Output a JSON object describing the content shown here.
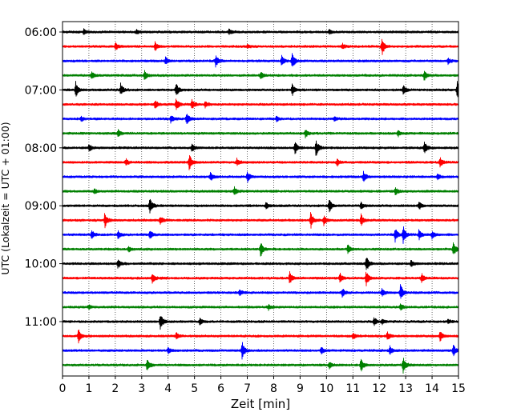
{
  "chart_data": {
    "type": "line",
    "subtype": "seismic-helicorder",
    "xlabel": "Zeit  [min]",
    "ylabel": "UTC (Lokalzeit = UTC + 01:00)",
    "xlim": [
      0,
      15
    ],
    "xticks": [
      0,
      1,
      2,
      3,
      4,
      5,
      6,
      7,
      8,
      9,
      10,
      11,
      12,
      13,
      14,
      15
    ],
    "grid": "vertical-dotted",
    "row_interval_min": 15,
    "yticks": [
      {
        "row": 0,
        "label": "06:00"
      },
      {
        "row": 4,
        "label": "07:00"
      },
      {
        "row": 8,
        "label": "08:00"
      },
      {
        "row": 12,
        "label": "09:00"
      },
      {
        "row": 16,
        "label": "10:00"
      },
      {
        "row": 20,
        "label": "11:00"
      }
    ],
    "colors": [
      "#000000",
      "#ff0000",
      "#0000ff",
      "#008000"
    ],
    "rows": [
      {
        "start": "06:00",
        "color": "#000000",
        "events": [
          [
            0.8,
            0.35
          ],
          [
            2.8,
            0.3
          ],
          [
            6.3,
            0.3
          ],
          [
            10.1,
            0.3
          ]
        ]
      },
      {
        "start": "06:15",
        "color": "#ff0000",
        "events": [
          [
            2.0,
            0.45
          ],
          [
            3.5,
            0.5
          ],
          [
            7.0,
            0.3
          ],
          [
            10.6,
            0.35
          ],
          [
            12.1,
            1.0
          ]
        ]
      },
      {
        "start": "06:30",
        "color": "#0000ff",
        "events": [
          [
            3.9,
            0.4
          ],
          [
            5.8,
            0.7
          ],
          [
            8.3,
            0.6
          ],
          [
            8.7,
            1.0
          ],
          [
            14.6,
            0.35
          ]
        ]
      },
      {
        "start": "06:45",
        "color": "#008000",
        "events": [
          [
            1.1,
            0.5
          ],
          [
            3.1,
            0.55
          ],
          [
            7.5,
            0.4
          ],
          [
            13.7,
            0.6
          ]
        ]
      },
      {
        "start": "07:00",
        "color": "#000000",
        "events": [
          [
            0.5,
            1.0
          ],
          [
            2.2,
            0.7
          ],
          [
            4.3,
            0.8
          ],
          [
            8.7,
            0.7
          ],
          [
            12.9,
            0.6
          ],
          [
            14.95,
            1.0
          ]
        ]
      },
      {
        "start": "07:15",
        "color": "#ff0000",
        "events": [
          [
            3.5,
            0.5
          ],
          [
            4.3,
            0.8
          ],
          [
            4.9,
            0.6
          ],
          [
            5.4,
            0.4
          ]
        ]
      },
      {
        "start": "07:30",
        "color": "#0000ff",
        "events": [
          [
            0.7,
            0.3
          ],
          [
            4.1,
            0.5
          ],
          [
            4.7,
            0.8
          ],
          [
            8.1,
            0.3
          ],
          [
            10.3,
            0.3
          ]
        ]
      },
      {
        "start": "07:45",
        "color": "#008000",
        "events": [
          [
            2.1,
            0.4
          ],
          [
            9.2,
            0.5
          ],
          [
            12.7,
            0.4
          ]
        ]
      },
      {
        "start": "08:00",
        "color": "#000000",
        "events": [
          [
            1.0,
            0.45
          ],
          [
            4.9,
            0.5
          ],
          [
            8.8,
            0.8
          ],
          [
            9.6,
            1.0
          ],
          [
            13.7,
            0.8
          ]
        ]
      },
      {
        "start": "08:15",
        "color": "#ff0000",
        "events": [
          [
            2.4,
            0.4
          ],
          [
            4.8,
            0.95
          ],
          [
            6.6,
            0.4
          ],
          [
            10.4,
            0.4
          ],
          [
            14.3,
            0.6
          ]
        ]
      },
      {
        "start": "08:30",
        "color": "#0000ff",
        "events": [
          [
            5.6,
            0.5
          ],
          [
            7.0,
            0.6
          ],
          [
            11.4,
            0.6
          ],
          [
            14.2,
            0.4
          ]
        ]
      },
      {
        "start": "08:45",
        "color": "#008000",
        "events": [
          [
            1.2,
            0.3
          ],
          [
            6.5,
            0.5
          ],
          [
            12.6,
            0.5
          ]
        ]
      },
      {
        "start": "09:00",
        "color": "#000000",
        "events": [
          [
            3.3,
            1.0
          ],
          [
            7.7,
            0.4
          ],
          [
            10.1,
            0.8
          ],
          [
            11.3,
            0.4
          ],
          [
            13.5,
            0.5
          ]
        ]
      },
      {
        "start": "09:15",
        "color": "#ff0000",
        "events": [
          [
            1.6,
            0.9
          ],
          [
            3.7,
            0.5
          ],
          [
            9.4,
            1.0
          ],
          [
            9.9,
            0.6
          ],
          [
            11.3,
            0.7
          ]
        ]
      },
      {
        "start": "09:30",
        "color": "#0000ff",
        "events": [
          [
            1.1,
            0.5
          ],
          [
            2.1,
            0.5
          ],
          [
            3.3,
            0.6
          ],
          [
            12.6,
            0.8
          ],
          [
            12.9,
            1.0
          ],
          [
            13.5,
            0.6
          ],
          [
            14.0,
            0.5
          ]
        ]
      },
      {
        "start": "09:45",
        "color": "#008000",
        "events": [
          [
            2.5,
            0.3
          ],
          [
            7.5,
            0.9
          ],
          [
            10.8,
            0.5
          ],
          [
            14.8,
            0.9
          ]
        ]
      },
      {
        "start": "10:00",
        "color": "#000000",
        "events": [
          [
            2.1,
            0.6
          ],
          [
            11.5,
            1.0
          ],
          [
            13.2,
            0.4
          ]
        ]
      },
      {
        "start": "10:15",
        "color": "#ff0000",
        "events": [
          [
            3.4,
            0.6
          ],
          [
            8.6,
            0.7
          ],
          [
            10.5,
            0.6
          ],
          [
            11.5,
            0.9
          ],
          [
            13.6,
            0.6
          ]
        ]
      },
      {
        "start": "10:30",
        "color": "#0000ff",
        "events": [
          [
            6.7,
            0.4
          ],
          [
            10.6,
            0.5
          ],
          [
            12.1,
            0.5
          ],
          [
            12.8,
            1.0
          ]
        ]
      },
      {
        "start": "10:45",
        "color": "#008000",
        "events": [
          [
            1.0,
            0.3
          ],
          [
            7.8,
            0.3
          ],
          [
            12.8,
            0.4
          ]
        ]
      },
      {
        "start": "11:00",
        "color": "#000000",
        "events": [
          [
            3.7,
            1.0
          ],
          [
            5.2,
            0.4
          ],
          [
            11.8,
            0.45
          ],
          [
            12.1,
            0.3
          ],
          [
            14.6,
            0.3
          ]
        ]
      },
      {
        "start": "11:15",
        "color": "#ff0000",
        "events": [
          [
            0.6,
            0.8
          ],
          [
            4.3,
            0.4
          ],
          [
            11.0,
            0.4
          ],
          [
            12.3,
            0.5
          ],
          [
            14.3,
            0.6
          ]
        ]
      },
      {
        "start": "11:30",
        "color": "#0000ff",
        "events": [
          [
            4.0,
            0.4
          ],
          [
            6.8,
            1.0
          ],
          [
            9.8,
            0.4
          ],
          [
            12.4,
            0.5
          ],
          [
            14.8,
            0.7
          ]
        ]
      },
      {
        "start": "11:45",
        "color": "#008000",
        "events": [
          [
            3.2,
            0.7
          ],
          [
            10.1,
            0.4
          ],
          [
            11.3,
            0.9
          ],
          [
            12.9,
            1.0
          ]
        ]
      }
    ]
  }
}
